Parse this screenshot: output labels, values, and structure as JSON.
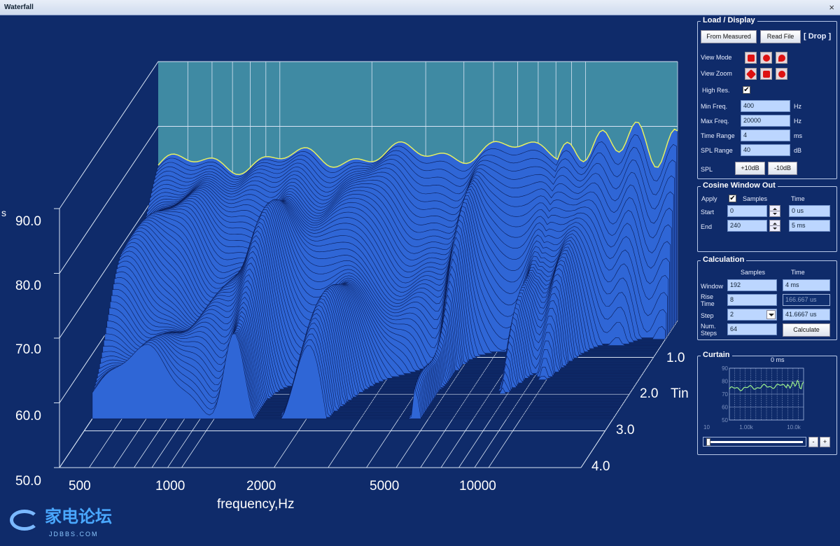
{
  "window": {
    "title": "Waterfall",
    "close": "×"
  },
  "plot": {
    "y_ticks": [
      "90.0",
      "80.0",
      "70.0",
      "60.0",
      "50.0"
    ],
    "y_label_fragment": "s",
    "x_ticks": [
      "500",
      "1000",
      "2000",
      "5000",
      "10000"
    ],
    "x_label": "frequency,Hz",
    "t_ticks": [
      "1.0",
      "2.0",
      "3.0",
      "4.0"
    ],
    "t_label": "Tin",
    "colors": {
      "surface": "#2f66d6",
      "mesh": "#0a1c55",
      "wall": "#3f8aa3",
      "topline": "#e8f060"
    }
  },
  "load_display": {
    "title": "Load / Display",
    "from_measured": "From Measured",
    "read_file": "Read File",
    "drop": "[ Drop ]",
    "view_mode": "View Mode",
    "view_zoom": "View Zoom",
    "high_res": "High Res.",
    "high_res_checked": "✔",
    "min_freq": {
      "label": "Min Freq.",
      "value": "400",
      "unit": "Hz"
    },
    "max_freq": {
      "label": "Max Freq.",
      "value": "20000",
      "unit": "Hz"
    },
    "time_range": {
      "label": "Time Range",
      "value": "4",
      "unit": "ms"
    },
    "spl_range": {
      "label": "SPL Range",
      "value": "40",
      "unit": "dB"
    },
    "spl": "SPL",
    "plus10": "+10dB",
    "minus10": "-10dB"
  },
  "cosine": {
    "title": "Cosine Window Out",
    "apply": "Apply",
    "apply_checked": "✔",
    "samples": "Samples",
    "time": "Time",
    "start": {
      "label": "Start",
      "samples": "0",
      "time": "0 us"
    },
    "end": {
      "label": "End",
      "samples": "240",
      "time": "5 ms"
    }
  },
  "calc": {
    "title": "Calculation",
    "samples": "Samples",
    "time": "Time",
    "window": {
      "label": "Window",
      "samples": "192",
      "time": "4 ms"
    },
    "rise": {
      "label": "Rise Time",
      "samples": "8",
      "time": "166.667 us"
    },
    "step": {
      "label": "Step",
      "samples": "2",
      "time": "41.6667 us"
    },
    "num": {
      "label": "Num. Steps",
      "samples": "64"
    },
    "calculate": "Calculate"
  },
  "curtain": {
    "title": "Curtain",
    "time": "0 ms",
    "y_ticks": [
      "90",
      "80",
      "70",
      "60",
      "50"
    ],
    "x_ticks": [
      "10",
      "1.00k",
      "10.0k"
    ],
    "minus": "-",
    "plus": "+",
    "slider_value": 0
  },
  "watermark": {
    "text": "家电论坛",
    "sub": "JDBBS.COM"
  }
}
